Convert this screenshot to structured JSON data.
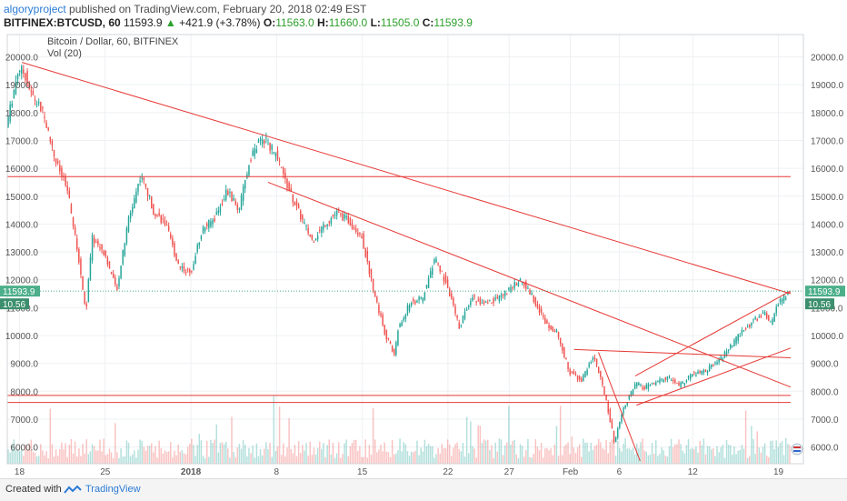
{
  "header": {
    "author": "algoryproject",
    "published_text": "published on TradingView.com, February 20, 2018 02:49 EST",
    "symbol": "BITFINEX:BTCUSD, 60",
    "price": "11593.9",
    "change": "+421.9 (+3.78%)",
    "o_label": "O:",
    "o_value": "11563.0",
    "h_label": "H:",
    "h_value": "11660.0",
    "l_label": "L:",
    "l_value": "11505.0",
    "c_label": "C:",
    "c_value": "11593.9"
  },
  "footer": {
    "created_with": "Created with",
    "brand": "TradingView"
  },
  "colors": {
    "up": "#26a69a",
    "down": "#ef5350",
    "trend": "#e53935",
    "grid": "#eef0f3",
    "badge": "#4caf8a"
  },
  "chart_data": {
    "type": "candlestick",
    "title": "Bitcoin / Dollar, 60, BITFINEX",
    "indicator": "Vol (20)",
    "y_axis": {
      "min": 5400,
      "max": 20800,
      "ticks": [
        "6000.0",
        "7000.0",
        "8000.0",
        "9000.0",
        "10000.0",
        "11000.0",
        "12000.0",
        "13000.0",
        "14000.0",
        "15000.0",
        "16000.0",
        "17000.0",
        "18000.0",
        "19000.0",
        "20000.0"
      ],
      "tick_values": [
        6000,
        7000,
        8000,
        9000,
        10000,
        11000,
        12000,
        13000,
        14000,
        15000,
        16000,
        17000,
        18000,
        19000,
        20000
      ]
    },
    "x_axis": {
      "start_day": 0,
      "end_day": 64,
      "ticks": [
        {
          "day": 1,
          "label": "18"
        },
        {
          "day": 8,
          "label": "25"
        },
        {
          "day": 15,
          "label": "2018"
        },
        {
          "day": 22,
          "label": "8"
        },
        {
          "day": 29,
          "label": "15"
        },
        {
          "day": 36,
          "label": "22"
        },
        {
          "day": 41,
          "label": "27"
        },
        {
          "day": 46,
          "label": "Feb"
        },
        {
          "day": 50,
          "label": "6"
        },
        {
          "day": 56,
          "label": "12"
        },
        {
          "day": 63,
          "label": "19"
        }
      ]
    },
    "price_path": [
      [
        0,
        17500
      ],
      [
        1,
        19600
      ],
      [
        1.5,
        19400
      ],
      [
        2,
        18700
      ],
      [
        3,
        18000
      ],
      [
        4,
        16300
      ],
      [
        5,
        15200
      ],
      [
        6,
        12500
      ],
      [
        6.5,
        10800
      ],
      [
        7,
        13500
      ],
      [
        8,
        13000
      ],
      [
        9,
        11600
      ],
      [
        10,
        14200
      ],
      [
        11,
        15800
      ],
      [
        12,
        14500
      ],
      [
        13,
        14000
      ],
      [
        14,
        12600
      ],
      [
        15,
        12200
      ],
      [
        16,
        13800
      ],
      [
        17,
        14200
      ],
      [
        18,
        15200
      ],
      [
        19,
        14500
      ],
      [
        20,
        16500
      ],
      [
        21,
        17100
      ],
      [
        22,
        16500
      ],
      [
        23,
        15300
      ],
      [
        24,
        14300
      ],
      [
        25,
        13400
      ],
      [
        26,
        14000
      ],
      [
        27,
        14400
      ],
      [
        28,
        14100
      ],
      [
        29,
        13600
      ],
      [
        30,
        11600
      ],
      [
        31,
        10000
      ],
      [
        31.7,
        9300
      ],
      [
        32,
        10200
      ],
      [
        33,
        11200
      ],
      [
        34,
        11300
      ],
      [
        35,
        12800
      ],
      [
        36,
        11800
      ],
      [
        37,
        10300
      ],
      [
        38,
        11400
      ],
      [
        39,
        11100
      ],
      [
        40,
        11300
      ],
      [
        41,
        11600
      ],
      [
        42,
        12000
      ],
      [
        43,
        11400
      ],
      [
        44,
        10500
      ],
      [
        45,
        10100
      ],
      [
        46,
        8700
      ],
      [
        47,
        8400
      ],
      [
        48,
        9300
      ],
      [
        49,
        7700
      ],
      [
        49.7,
        6100
      ],
      [
        50,
        6800
      ],
      [
        50.5,
        7500
      ],
      [
        51.5,
        8300
      ],
      [
        52,
        8100
      ],
      [
        53,
        8300
      ],
      [
        54,
        8500
      ],
      [
        55,
        8200
      ],
      [
        56,
        8600
      ],
      [
        57,
        8700
      ],
      [
        58,
        9000
      ],
      [
        59,
        9500
      ],
      [
        60,
        10100
      ],
      [
        61,
        10500
      ],
      [
        62,
        10800
      ],
      [
        62.5,
        10400
      ],
      [
        63,
        11100
      ],
      [
        64,
        11594
      ]
    ],
    "trendlines": [
      {
        "from": [
          1.2,
          19800
        ],
        "to": [
          64,
          11500
        ]
      },
      {
        "from": [
          21.3,
          15500
        ],
        "to": [
          64,
          8150
        ]
      },
      {
        "from": [
          46.3,
          9500
        ],
        "to": [
          64,
          9200
        ]
      },
      {
        "from": [
          48.3,
          9400
        ],
        "to": [
          51.7,
          5500
        ]
      },
      {
        "from": [
          51.4,
          7500
        ],
        "to": [
          64,
          9550
        ]
      },
      {
        "from": [
          51.3,
          8550
        ],
        "to": [
          64,
          11600
        ]
      },
      {
        "from": [
          0,
          15700
        ],
        "to": [
          64,
          15700
        ]
      },
      {
        "from": [
          0,
          7850
        ],
        "to": [
          64,
          7850
        ]
      },
      {
        "from": [
          0,
          7600
        ],
        "to": [
          64,
          7600
        ]
      }
    ],
    "last_price_label": "11593.9",
    "volume_label": "10.56",
    "current_price": 11593.9
  }
}
